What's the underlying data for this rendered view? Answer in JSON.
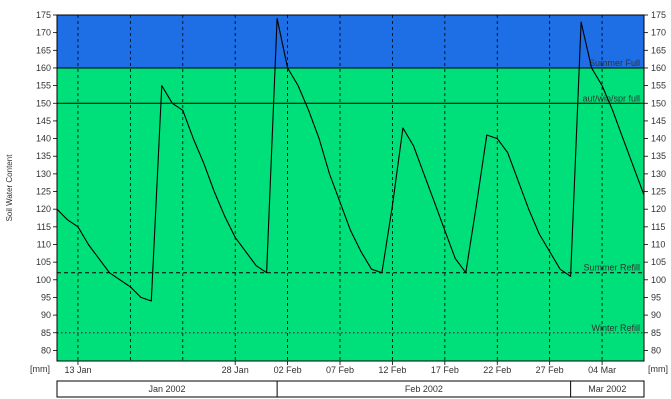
{
  "chart_data": {
    "type": "line",
    "ylabel": "Soil Water Content",
    "unit_label": "[mm]",
    "ylim": [
      77,
      175
    ],
    "yticks": [
      80,
      85,
      90,
      95,
      100,
      105,
      110,
      115,
      120,
      125,
      130,
      135,
      140,
      145,
      150,
      155,
      160,
      165,
      170,
      175
    ],
    "xlim": [
      "2002-01-11",
      "2002-03-08"
    ],
    "xticks": [
      {
        "date": "2002-01-13",
        "label": "13 Jan"
      },
      {
        "date": "2002-01-28",
        "label": "28 Jan"
      },
      {
        "date": "2002-02-02",
        "label": "02 Feb"
      },
      {
        "date": "2002-02-07",
        "label": "07 Feb"
      },
      {
        "date": "2002-02-12",
        "label": "12 Feb"
      },
      {
        "date": "2002-02-17",
        "label": "17 Feb"
      },
      {
        "date": "2002-02-22",
        "label": "22 Feb"
      },
      {
        "date": "2002-02-27",
        "label": "27 Feb"
      },
      {
        "date": "2002-03-04",
        "label": "04 Mar"
      }
    ],
    "minor_grid_dates": [
      "2002-01-18",
      "2002-01-23",
      "2002-03-09"
    ],
    "months": [
      {
        "label": "Jan 2002",
        "start": "2002-01-11",
        "end": "2002-02-01"
      },
      {
        "label": "Feb 2002",
        "start": "2002-02-01",
        "end": "2002-03-01"
      },
      {
        "label": "Mar 2002",
        "start": "2002-03-01",
        "end": "2002-03-08"
      }
    ],
    "zones": [
      {
        "from": 160,
        "to": 175,
        "color": "#1e6ee6"
      },
      {
        "from": 77,
        "to": 160,
        "color": "#00e07a"
      }
    ],
    "thresholds": [
      {
        "label": "Summer Full",
        "value": 160,
        "style": "solid"
      },
      {
        "label": "aut/win/spr full",
        "value": 150,
        "style": "solid"
      },
      {
        "label": "Summer Refill",
        "value": 102,
        "style": "dashed"
      },
      {
        "label": "Winter Refill",
        "value": 85,
        "style": "dotted"
      }
    ],
    "grid": true,
    "line_color": "#000000",
    "series": [
      {
        "x": [
          "2002-01-11",
          "2002-01-12",
          "2002-01-13",
          "2002-01-14",
          "2002-01-15",
          "2002-01-16",
          "2002-01-17",
          "2002-01-18",
          "2002-01-19",
          "2002-01-20",
          "2002-01-21",
          "2002-01-22",
          "2002-01-23",
          "2002-01-24",
          "2002-01-25",
          "2002-01-26",
          "2002-01-27",
          "2002-01-28",
          "2002-01-29",
          "2002-01-30",
          "2002-01-31",
          "2002-02-01",
          "2002-02-02",
          "2002-02-03",
          "2002-02-04",
          "2002-02-05",
          "2002-02-06",
          "2002-02-07",
          "2002-02-08",
          "2002-02-09",
          "2002-02-10",
          "2002-02-11",
          "2002-02-12",
          "2002-02-13",
          "2002-02-14",
          "2002-02-15",
          "2002-02-16",
          "2002-02-17",
          "2002-02-18",
          "2002-02-19",
          "2002-02-20",
          "2002-02-21",
          "2002-02-22",
          "2002-02-23",
          "2002-02-24",
          "2002-02-25",
          "2002-02-26",
          "2002-02-27",
          "2002-02-28",
          "2002-03-01",
          "2002-03-02",
          "2002-03-03",
          "2002-03-04",
          "2002-03-05",
          "2002-03-06",
          "2002-03-07",
          "2002-03-08"
        ],
        "y": [
          120,
          117,
          115,
          110,
          106,
          102,
          100,
          98,
          95,
          94,
          155,
          150,
          148,
          140,
          133,
          125,
          118,
          112,
          108,
          104,
          102,
          174,
          160,
          155,
          148,
          140,
          130,
          122,
          114,
          108,
          103,
          102,
          121,
          143,
          138,
          130,
          122,
          114,
          106,
          102,
          121,
          141,
          140,
          136,
          128,
          120,
          113,
          108,
          103,
          101,
          173,
          160,
          155,
          148,
          140,
          132,
          124
        ]
      }
    ]
  }
}
